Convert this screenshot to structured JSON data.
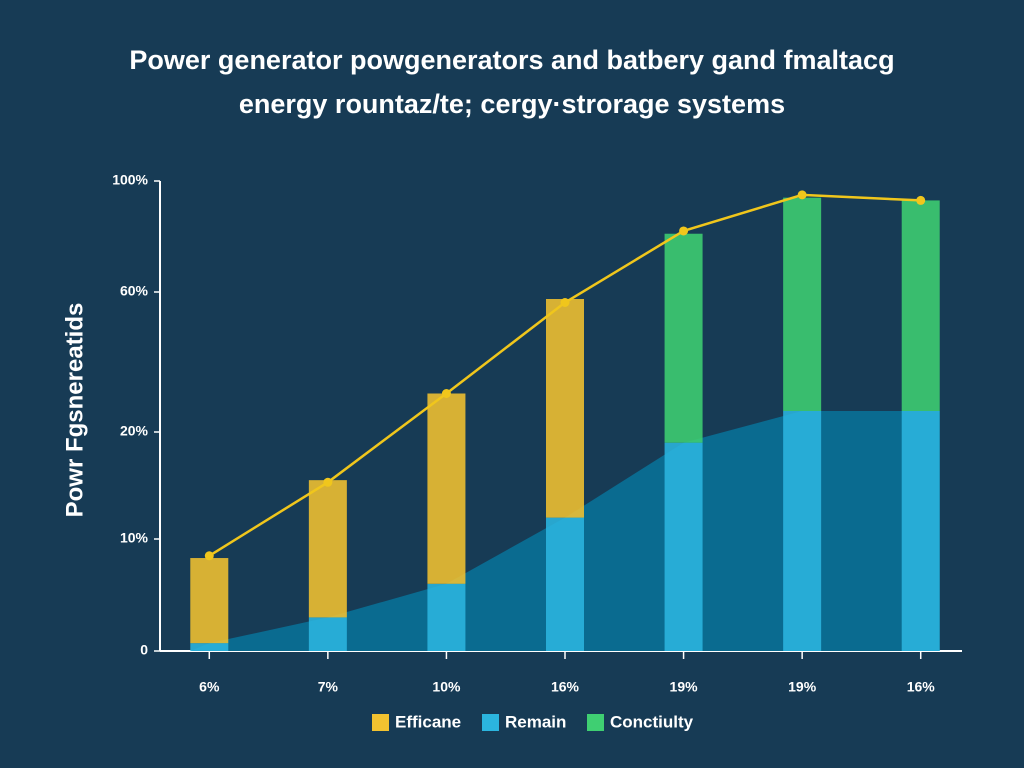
{
  "chart_data": {
    "type": "bar",
    "title": "Power generator powgenerators and batbery gand fmaltacg",
    "subtitle": "energy rountaz/te; cergy·strorage systems",
    "y_label": "Powr Fgsnereatids",
    "categories": [
      "6%",
      "7%",
      "10%",
      "16%",
      "19%",
      "19%",
      "16%"
    ],
    "series": [
      {
        "name": "Efficane",
        "color": "#f2c230",
        "values": [
          7.6,
          12.5,
          25,
          46,
          null,
          null,
          null
        ]
      },
      {
        "name": "Remain",
        "color": "#2bb5df",
        "values": [
          0.7,
          3,
          6,
          12,
          19,
          26,
          26
        ]
      },
      {
        "name": "Conctiulty",
        "color": "#3fcf72",
        "values": [
          null,
          null,
          null,
          null,
          62,
          68,
          67
        ]
      }
    ],
    "line": {
      "color": "#f0c61c",
      "values": [
        8.5,
        15.3,
        31,
        57,
        82,
        95,
        93
      ]
    },
    "area_color": "#0a6b90",
    "ylim": [
      0,
      100
    ],
    "yticks": [
      0,
      {
        "value": 10,
        "label": "10%"
      },
      {
        "value": 20,
        "label": "20%"
      },
      {
        "value": 60,
        "label": "60%"
      },
      {
        "value": 100,
        "label": "100%"
      }
    ],
    "legend": "bottom"
  }
}
